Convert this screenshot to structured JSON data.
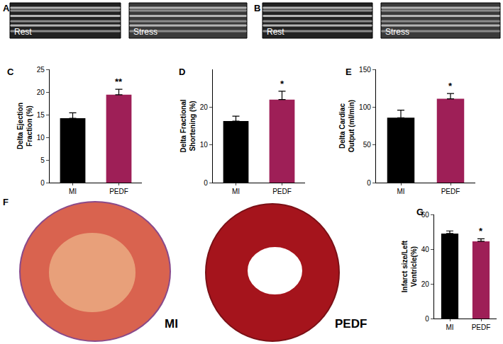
{
  "chart_data": [
    {
      "type": "bar",
      "panel": "C",
      "y_label": [
        "Delta Ejection",
        "Fraction (%)"
      ],
      "categories": [
        "MI",
        "PEDF"
      ],
      "values": [
        14.2,
        19.4
      ],
      "errors": [
        1.2,
        1.2
      ],
      "colors": [
        "#000000",
        "#9e1f57"
      ],
      "ylim": [
        0,
        25
      ],
      "yticks": [
        0,
        5,
        10,
        15,
        20,
        25
      ],
      "annotations": [
        {
          "category": "PEDF",
          "text": "**"
        }
      ]
    },
    {
      "type": "bar",
      "panel": "D",
      "y_label": [
        "Delta Fractional",
        "Shortening (%)"
      ],
      "categories": [
        "MI",
        "PEDF"
      ],
      "values": [
        16.3,
        22
      ],
      "errors": [
        1.3,
        2.2
      ],
      "colors": [
        "#000000",
        "#9e1f57"
      ],
      "ylim": [
        0,
        30
      ],
      "yticks": [
        0,
        10,
        20
      ],
      "annotations": [
        {
          "category": "PEDF",
          "text": "*"
        }
      ]
    },
    {
      "type": "bar",
      "panel": "E",
      "y_label": [
        "Delta Cardiac",
        "Output (ml/min)"
      ],
      "categories": [
        "MI",
        "PEDF"
      ],
      "values": [
        86,
        111
      ],
      "errors": [
        10,
        7
      ],
      "colors": [
        "#000000",
        "#9e1f57"
      ],
      "ylim": [
        0,
        150
      ],
      "yticks": [
        0,
        50,
        100,
        150
      ],
      "annotations": [
        {
          "category": "PEDF",
          "text": "*"
        }
      ]
    },
    {
      "type": "bar",
      "panel": "G",
      "y_label": [
        "Infarct size/Left",
        "Ventricle(%)"
      ],
      "categories": [
        "MI",
        "PEDF"
      ],
      "values": [
        49,
        44.5
      ],
      "errors": [
        1.5,
        1.5
      ],
      "colors": [
        "#000000",
        "#9e1f57"
      ],
      "ylim": [
        0,
        60
      ],
      "yticks": [
        0,
        20,
        40,
        60
      ],
      "annotations": [
        {
          "category": "PEDF",
          "text": "*"
        }
      ]
    }
  ],
  "images": [
    {
      "panel": "A",
      "captions": [
        "Rest",
        "Stress"
      ]
    },
    {
      "panel": "B",
      "captions": [
        "Rest",
        "Stress"
      ]
    },
    {
      "panel": "F",
      "captions": [
        "MI",
        "PEDF"
      ]
    }
  ]
}
